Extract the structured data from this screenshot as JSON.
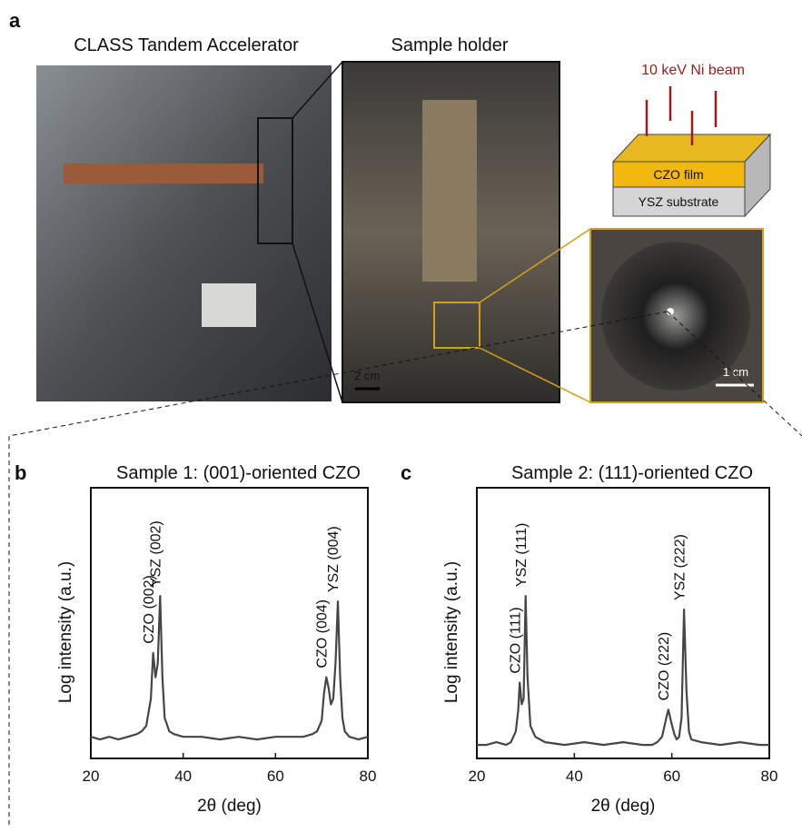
{
  "panel_a": {
    "label": "a",
    "left_title": "CLASS Tandem Accelerator",
    "middle_title": "Sample holder",
    "beam": "10 keV Ni beam",
    "film": "CZO film",
    "substrate": "YSZ substrate",
    "scale_left": "2 cm",
    "scale_right": "1 cm"
  },
  "chart_data": [
    {
      "type": "line",
      "label": "b",
      "title": "Sample 1: (001)-oriented CZO",
      "x_label": "2θ (deg)",
      "y_label": "Log intensity (a.u.)",
      "xlim": [
        20,
        80
      ],
      "xticks": [
        20,
        40,
        60,
        80
      ],
      "ylim": [
        0,
        100
      ],
      "x": [
        20,
        22,
        24,
        26,
        28,
        30,
        31,
        32,
        33,
        33.5,
        34,
        34.5,
        35,
        35.5,
        36,
        37,
        38,
        40,
        44,
        48,
        52,
        56,
        60,
        64,
        66,
        68,
        69,
        70,
        70.5,
        71,
        71.5,
        72,
        72.5,
        73,
        73.5,
        74,
        74.5,
        75,
        76,
        78,
        80
      ],
      "series": [
        {
          "color": "#454545",
          "values": [
            8,
            7,
            8,
            7,
            8,
            9,
            10,
            12,
            22,
            39,
            30,
            35,
            60,
            30,
            15,
            10,
            9,
            8,
            8,
            7,
            8,
            7,
            8,
            8,
            8,
            9,
            10,
            14,
            24,
            30,
            26,
            20,
            22,
            35,
            58,
            30,
            15,
            10,
            8,
            7,
            8
          ]
        }
      ],
      "annotations": [
        {
          "text": "CZO (002)",
          "x": 33.5
        },
        {
          "text": "YSZ (002)",
          "x": 35
        },
        {
          "text": "CZO (004)",
          "x": 71
        },
        {
          "text": "YSZ (004)",
          "x": 73.5
        }
      ]
    },
    {
      "type": "line",
      "label": "c",
      "title": "Sample 2: (111)-oriented CZO",
      "x_label": "2θ (deg)",
      "y_label": "Log intensity (a.u.)",
      "xlim": [
        20,
        80
      ],
      "xticks": [
        20,
        40,
        60,
        80
      ],
      "ylim": [
        0,
        100
      ],
      "x": [
        20,
        22,
        24,
        26,
        27,
        28,
        28.5,
        28.8,
        29.2,
        29.6,
        30,
        30.4,
        31,
        32,
        34,
        38,
        42,
        46,
        50,
        54,
        56,
        57,
        58,
        58.5,
        59,
        59.3,
        59.8,
        60.5,
        61,
        61.5,
        62,
        62.5,
        63,
        63.5,
        64,
        66,
        70,
        74,
        78,
        80
      ],
      "series": [
        {
          "color": "#454545",
          "values": [
            5,
            5,
            6,
            5,
            6,
            10,
            18,
            28,
            20,
            22,
            60,
            30,
            12,
            8,
            6,
            5,
            6,
            5,
            6,
            5,
            5,
            6,
            8,
            12,
            16,
            18,
            14,
            9,
            7,
            8,
            15,
            55,
            25,
            10,
            7,
            6,
            5,
            6,
            5,
            5
          ]
        }
      ],
      "annotations": [
        {
          "text": "CZO (111)",
          "x": 28.8
        },
        {
          "text": "YSZ (111)",
          "x": 30
        },
        {
          "text": "CZO (222)",
          "x": 59.3
        },
        {
          "text": "YSZ (222)",
          "x": 62.5
        }
      ]
    }
  ]
}
